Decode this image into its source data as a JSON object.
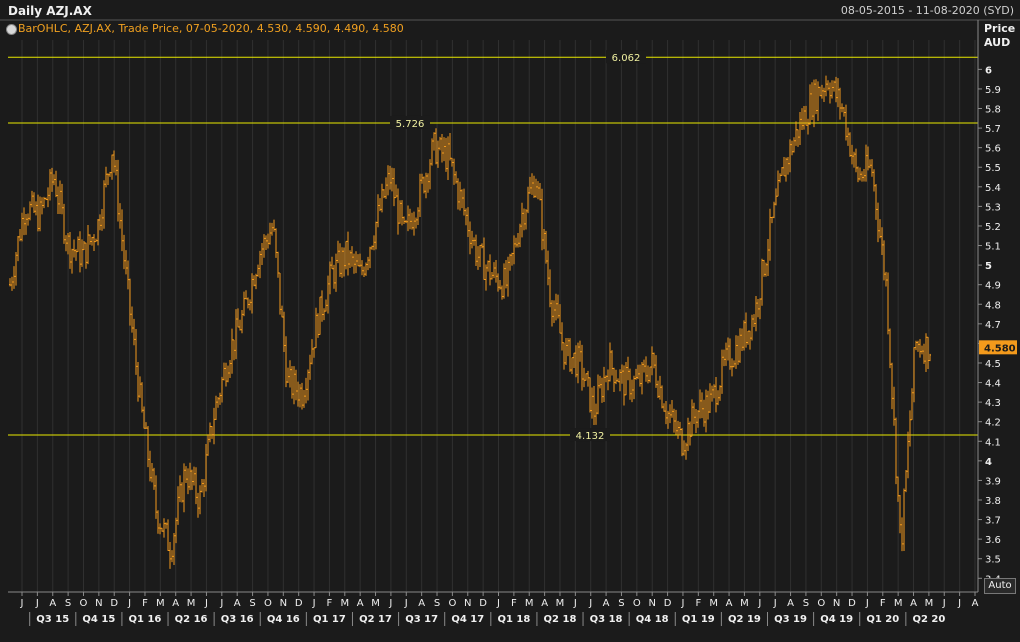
{
  "header": {
    "title": "Daily AZJ.AX",
    "date_range": "08-05-2015 - 11-08-2020 (SYD)"
  },
  "legend": {
    "text": "BarOHLC, AZJ.AX, Trade Price, 07-05-2020, 4.530, 4.590, 4.490, 4.580"
  },
  "axis": {
    "y_title_line1": "Price",
    "y_title_line2": "AUD",
    "auto_label": "Auto"
  },
  "colors": {
    "background": "#1b1b1b",
    "plot_bg": "#1b1b1b",
    "series": "#f39a1c",
    "reference": "#e8e800",
    "grid": "#303030",
    "last_price_bg": "#f39a1c"
  },
  "chart_data": {
    "type": "bar",
    "subtype": "ohlc",
    "series_name": "AZJ.AX",
    "ylim": [
      3.33,
      6.15
    ],
    "y_ticks": [
      "6",
      "5.9",
      "5.8",
      "5.7",
      "5.6",
      "5.5",
      "5.4",
      "5.3",
      "5.2",
      "5.1",
      "5",
      "4.9",
      "4.8",
      "4.7",
      "4.6",
      "4.5",
      "4.4",
      "4.3",
      "4.2",
      "4.1",
      "4",
      "3.9",
      "3.8",
      "3.7",
      "3.6",
      "3.5",
      "3.4"
    ],
    "month_labels": [
      "J",
      "J",
      "A",
      "S",
      "O",
      "N",
      "D",
      "J",
      "F",
      "M",
      "A",
      "M",
      "J",
      "J",
      "A",
      "S",
      "O",
      "N",
      "D",
      "J",
      "F",
      "M",
      "A",
      "M",
      "J",
      "J",
      "A",
      "S",
      "O",
      "N",
      "D",
      "J",
      "F",
      "M",
      "A",
      "M",
      "J",
      "J",
      "A",
      "S",
      "O",
      "N",
      "D",
      "J",
      "F",
      "M",
      "A",
      "M",
      "J",
      "J",
      "A",
      "S",
      "O",
      "N",
      "D",
      "J",
      "F",
      "M",
      "A",
      "M",
      "J",
      "J",
      "A"
    ],
    "quarter_labels": [
      "Q3 15",
      "Q4 15",
      "Q1 16",
      "Q2 16",
      "Q3 16",
      "Q4 16",
      "Q1 17",
      "Q2 17",
      "Q3 17",
      "Q4 17",
      "Q1 18",
      "Q2 18",
      "Q3 18",
      "Q4 18",
      "Q1 19",
      "Q2 19",
      "Q3 19",
      "Q4 19",
      "Q1 20",
      "Q2 20"
    ],
    "reference_lines": [
      {
        "value": 6.062,
        "label": "6.062"
      },
      {
        "value": 5.726,
        "label": "5.726"
      },
      {
        "value": 4.132,
        "label": "4.132"
      }
    ],
    "last_price": {
      "value": 4.58,
      "label": "4.580"
    },
    "close_path": [
      [
        0,
        4.9
      ],
      [
        2,
        5.3
      ],
      [
        4,
        5.25
      ],
      [
        5,
        5.45
      ],
      [
        6,
        5.1
      ],
      [
        7,
        5.05
      ],
      [
        8,
        5.2
      ],
      [
        9,
        5.6
      ],
      [
        10,
        4.9
      ],
      [
        11,
        4.25
      ],
      [
        12,
        3.75
      ],
      [
        13,
        3.55
      ],
      [
        14,
        3.95
      ],
      [
        15,
        3.8
      ],
      [
        16,
        4.25
      ],
      [
        17,
        4.55
      ],
      [
        18,
        4.75
      ],
      [
        19,
        5.05
      ],
      [
        20,
        5.2
      ],
      [
        21,
        4.4
      ],
      [
        22,
        4.35
      ],
      [
        23,
        4.7
      ],
      [
        24,
        4.95
      ],
      [
        25,
        5.05
      ],
      [
        26,
        4.95
      ],
      [
        27,
        5.2
      ],
      [
        28,
        5.45
      ],
      [
        29,
        5.15
      ],
      [
        30,
        5.35
      ],
      [
        31,
        5.6
      ],
      [
        32,
        5.55
      ],
      [
        33,
        5.3
      ],
      [
        34,
        5.05
      ],
      [
        35,
        4.95
      ],
      [
        36,
        4.9
      ],
      [
        37,
        5.25
      ],
      [
        38,
        5.45
      ],
      [
        39,
        4.85
      ],
      [
        40,
        4.55
      ],
      [
        41,
        4.5
      ],
      [
        42,
        4.25
      ],
      [
        43,
        4.5
      ],
      [
        44,
        4.4
      ],
      [
        45,
        4.4
      ],
      [
        46,
        4.5
      ],
      [
        47,
        4.25
      ],
      [
        48,
        4.1
      ],
      [
        49,
        4.25
      ],
      [
        50,
        4.3
      ],
      [
        51,
        4.5
      ],
      [
        52,
        4.6
      ],
      [
        53,
        4.75
      ],
      [
        54,
        5.15
      ],
      [
        55,
        5.5
      ],
      [
        56,
        5.7
      ],
      [
        57,
        5.85
      ],
      [
        58,
        5.95
      ],
      [
        59,
        5.8
      ],
      [
        60,
        5.45
      ],
      [
        61,
        5.5
      ],
      [
        62,
        4.9
      ],
      [
        63,
        3.55
      ],
      [
        64,
        4.6
      ],
      [
        65,
        4.58
      ]
    ]
  }
}
